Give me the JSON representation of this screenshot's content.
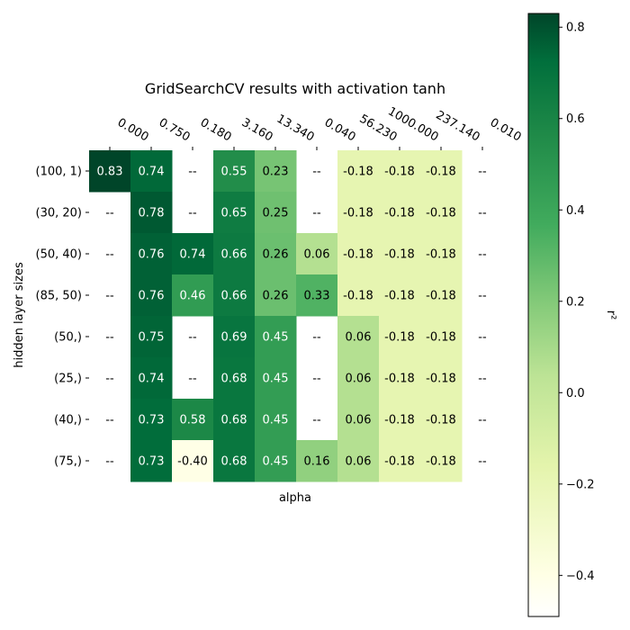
{
  "chart_data": {
    "type": "heatmap",
    "title": "GridSearchCV results with activation tanh",
    "xlabel": "alpha",
    "ylabel": "hidden layer sizes",
    "colorbar_label": "r²",
    "colorbar_ticks": [
      "0.8",
      "0.6",
      "0.4",
      "0.2",
      "0.0",
      "−0.2",
      "−0.4"
    ],
    "colorbar_range": [
      -0.49,
      0.83
    ],
    "colormap": "YlGn",
    "x_categories": [
      "0.000",
      "0.750",
      "0.180",
      "3.160",
      "13.340",
      "0.040",
      "56.230",
      "1000.000",
      "237.140",
      "0.010"
    ],
    "y_categories": [
      "(100, 1)",
      "(30, 20)",
      "(50, 40)",
      "(85, 50)",
      "(50,)",
      "(25,)",
      "(40,)",
      "(75,)"
    ],
    "missing_label": "--",
    "values": [
      [
        0.83,
        0.74,
        null,
        0.55,
        0.23,
        null,
        -0.18,
        -0.18,
        -0.18,
        null
      ],
      [
        null,
        0.78,
        null,
        0.65,
        0.25,
        null,
        -0.18,
        -0.18,
        -0.18,
        null
      ],
      [
        null,
        0.76,
        0.74,
        0.66,
        0.26,
        0.06,
        -0.18,
        -0.18,
        -0.18,
        null
      ],
      [
        null,
        0.76,
        0.46,
        0.66,
        0.26,
        0.33,
        -0.18,
        -0.18,
        -0.18,
        null
      ],
      [
        null,
        0.75,
        null,
        0.69,
        0.45,
        null,
        0.06,
        -0.18,
        -0.18,
        null
      ],
      [
        null,
        0.74,
        null,
        0.68,
        0.45,
        null,
        0.06,
        -0.18,
        -0.18,
        null
      ],
      [
        null,
        0.73,
        0.58,
        0.68,
        0.45,
        null,
        0.06,
        -0.18,
        -0.18,
        null
      ],
      [
        null,
        0.73,
        -0.4,
        0.68,
        0.45,
        0.16,
        0.06,
        -0.18,
        -0.18,
        null
      ]
    ],
    "cell_labels": [
      [
        "0.83",
        "0.74",
        "--",
        "0.55",
        "0.23",
        "--",
        "-0.18",
        "-0.18",
        "-0.18",
        "--"
      ],
      [
        "--",
        "0.78",
        "--",
        "0.65",
        "0.25",
        "--",
        "-0.18",
        "-0.18",
        "-0.18",
        "--"
      ],
      [
        "--",
        "0.76",
        "0.74",
        "0.66",
        "0.26",
        "0.06",
        "-0.18",
        "-0.18",
        "-0.18",
        "--"
      ],
      [
        "--",
        "0.76",
        "0.46",
        "0.66",
        "0.26",
        "0.33",
        "-0.18",
        "-0.18",
        "-0.18",
        "--"
      ],
      [
        "--",
        "0.75",
        "--",
        "0.69",
        "0.45",
        "--",
        "0.06",
        "-0.18",
        "-0.18",
        "--"
      ],
      [
        "--",
        "0.74",
        "--",
        "0.68",
        "0.45",
        "--",
        "0.06",
        "-0.18",
        "-0.18",
        "--"
      ],
      [
        "--",
        "0.73",
        "0.58",
        "0.68",
        "0.45",
        "--",
        "0.06",
        "-0.18",
        "-0.18",
        "--"
      ],
      [
        "--",
        "0.73",
        "-0.40",
        "0.68",
        "0.45",
        "0.16",
        "0.06",
        "-0.18",
        "-0.18",
        "--"
      ]
    ]
  }
}
